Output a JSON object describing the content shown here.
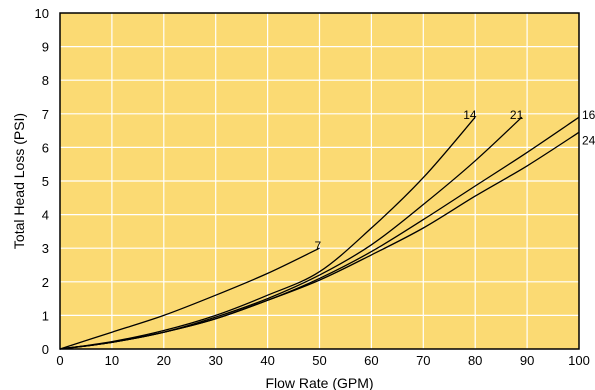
{
  "chart_data": {
    "type": "line",
    "title": "",
    "xlabel": "Flow Rate (GPM)",
    "ylabel": "Total Head Loss (PSI)",
    "xlim": [
      0,
      100
    ],
    "ylim": [
      0,
      10
    ],
    "x_ticks": [
      "0",
      "10",
      "20",
      "30",
      "40",
      "50",
      "60",
      "70",
      "80",
      "90",
      "100"
    ],
    "y_ticks": [
      "0",
      "1",
      "2",
      "3",
      "4",
      "5",
      "6",
      "7",
      "8",
      "9",
      "10"
    ],
    "grid": true,
    "colors": {
      "plot_background": "#FBDA73",
      "grid": "#FFFFFF",
      "lines": "#000000"
    },
    "series": [
      {
        "name": "7",
        "x": [
          0,
          10,
          20,
          30,
          40,
          50
        ],
        "y": [
          0,
          0.5,
          1.0,
          1.6,
          2.25,
          3.0
        ]
      },
      {
        "name": "14",
        "x": [
          0,
          10,
          20,
          30,
          40,
          50,
          60,
          70,
          80
        ],
        "y": [
          0,
          0.22,
          0.55,
          1.0,
          1.6,
          2.3,
          3.6,
          5.1,
          6.9
        ]
      },
      {
        "name": "21",
        "x": [
          0,
          10,
          20,
          30,
          40,
          50,
          60,
          70,
          80,
          89
        ],
        "y": [
          0,
          0.2,
          0.5,
          0.95,
          1.5,
          2.2,
          3.1,
          4.3,
          5.6,
          6.9
        ]
      },
      {
        "name": "16",
        "x": [
          0,
          10,
          20,
          30,
          40,
          50,
          60,
          70,
          80,
          90,
          100
        ],
        "y": [
          0,
          0.2,
          0.5,
          0.9,
          1.45,
          2.1,
          2.9,
          3.85,
          4.85,
          5.85,
          6.9
        ]
      },
      {
        "name": "24",
        "x": [
          0,
          10,
          20,
          30,
          40,
          50,
          60,
          70,
          80,
          90,
          100
        ],
        "y": [
          0,
          0.2,
          0.5,
          0.9,
          1.45,
          2.05,
          2.8,
          3.6,
          4.55,
          5.45,
          6.45
        ]
      }
    ]
  }
}
